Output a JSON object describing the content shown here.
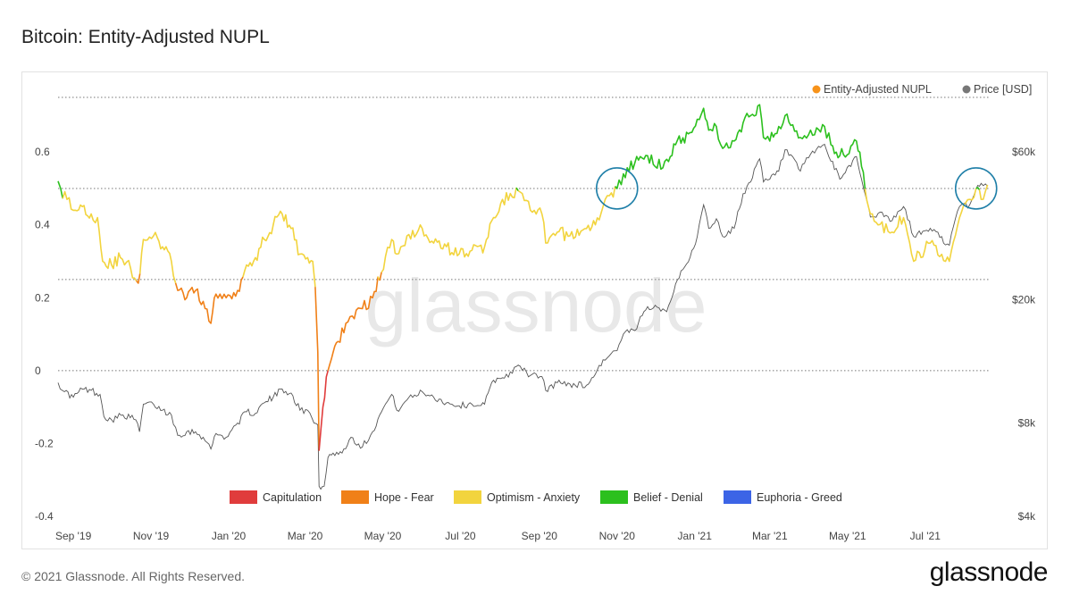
{
  "header": {
    "title": "Bitcoin: Entity-Adjusted NUPL"
  },
  "footer": {
    "copyright": "© 2021 Glassnode. All Rights Reserved.",
    "logo_text": "glassnode"
  },
  "watermark": "glassnode",
  "colors": {
    "capitulation": "#e03c3c",
    "hope_fear": "#f08018",
    "optimism_anxiety": "#f2d43e",
    "belief_denial": "#2cc01e",
    "euphoria_greed": "#3c64e6",
    "price": "#555555",
    "highlight_circle": "#1f7fa8",
    "nupl_legend_dot": "#f7931a",
    "price_legend_dot": "#777777"
  },
  "chart_data": {
    "type": "line",
    "title": "Bitcoin: Entity-Adjusted NUPL",
    "legend": {
      "placement": "top-right",
      "items": [
        "Entity-Adjusted NUPL",
        "Price [USD]"
      ]
    },
    "zone_legend": [
      {
        "label": "Capitulation",
        "color": "#e03c3c"
      },
      {
        "label": "Hope - Fear",
        "color": "#f08018"
      },
      {
        "label": "Optimism - Anxiety",
        "color": "#f2d43e"
      },
      {
        "label": "Belief - Denial",
        "color": "#2cc01e"
      },
      {
        "label": "Euphoria - Greed",
        "color": "#3c64e6"
      }
    ],
    "x_ticks": [
      "Sep '19",
      "Nov '19",
      "Jan '20",
      "Mar '20",
      "May '20",
      "Jul '20",
      "Sep '20",
      "Nov '20",
      "Jan '21",
      "Mar '21",
      "May '21",
      "Jul '21"
    ],
    "x_tick_dates": [
      "2019-09-01",
      "2019-11-01",
      "2020-01-01",
      "2020-03-01",
      "2020-05-01",
      "2020-07-01",
      "2020-09-01",
      "2020-11-01",
      "2021-01-01",
      "2021-03-01",
      "2021-05-01",
      "2021-07-01"
    ],
    "xlim": [
      "2019-08-20",
      "2021-08-20"
    ],
    "left_axis": {
      "label": "",
      "ylim": [
        -0.4,
        0.75
      ],
      "ticks": [
        "0.6",
        "0.4",
        "0.2",
        "0",
        "-0.2",
        "-0.4"
      ],
      "tick_values": [
        0.6,
        0.4,
        0.2,
        0,
        -0.2,
        -0.4
      ]
    },
    "right_axis": {
      "label": "",
      "scale": "log",
      "ylim": [
        4000,
        90000
      ],
      "ticks": [
        "$60k",
        "$20k",
        "$8k",
        "$4k"
      ],
      "tick_values": [
        60000,
        20000,
        8000,
        4000
      ]
    },
    "grid": "dotted reference lines at NUPL 0.75, 0.5, 0.25, 0",
    "zone_lines": [
      0.75,
      0.5,
      0.25,
      0
    ],
    "series": [
      {
        "name": "Entity-Adjusted NUPL",
        "axis": "left",
        "colored_by_zone": true,
        "points": [
          [
            "2019-08-20",
            0.52
          ],
          [
            "2019-08-22",
            0.5
          ],
          [
            "2019-08-27",
            0.47
          ],
          [
            "2019-09-01",
            0.44
          ],
          [
            "2019-09-08",
            0.45
          ],
          [
            "2019-09-15",
            0.43
          ],
          [
            "2019-09-20",
            0.42
          ],
          [
            "2019-09-24",
            0.3
          ],
          [
            "2019-10-01",
            0.29
          ],
          [
            "2019-10-08",
            0.31
          ],
          [
            "2019-10-16",
            0.28
          ],
          [
            "2019-10-22",
            0.24
          ],
          [
            "2019-10-26",
            0.36
          ],
          [
            "2019-11-03",
            0.37
          ],
          [
            "2019-11-10",
            0.34
          ],
          [
            "2019-11-17",
            0.3
          ],
          [
            "2019-11-22",
            0.22
          ],
          [
            "2019-11-29",
            0.2
          ],
          [
            "2019-12-06",
            0.22
          ],
          [
            "2019-12-12",
            0.19
          ],
          [
            "2019-12-18",
            0.13
          ],
          [
            "2019-12-22",
            0.21
          ],
          [
            "2019-12-30",
            0.2
          ],
          [
            "2020-01-08",
            0.22
          ],
          [
            "2020-01-15",
            0.29
          ],
          [
            "2020-01-22",
            0.31
          ],
          [
            "2020-01-29",
            0.36
          ],
          [
            "2020-02-05",
            0.4
          ],
          [
            "2020-02-12",
            0.43
          ],
          [
            "2020-02-19",
            0.39
          ],
          [
            "2020-02-26",
            0.32
          ],
          [
            "2020-03-03",
            0.31
          ],
          [
            "2020-03-07",
            0.3
          ],
          [
            "2020-03-09",
            0.23
          ],
          [
            "2020-03-11",
            0.05
          ],
          [
            "2020-03-12",
            -0.22
          ],
          [
            "2020-03-15",
            -0.1
          ],
          [
            "2020-03-19",
            0.0
          ],
          [
            "2020-03-23",
            0.05
          ],
          [
            "2020-03-27",
            0.08
          ],
          [
            "2020-04-02",
            0.13
          ],
          [
            "2020-04-07",
            0.15
          ],
          [
            "2020-04-15",
            0.17
          ],
          [
            "2020-04-23",
            0.2
          ],
          [
            "2020-04-30",
            0.27
          ],
          [
            "2020-05-08",
            0.36
          ],
          [
            "2020-05-12",
            0.32
          ],
          [
            "2020-05-20",
            0.37
          ],
          [
            "2020-06-01",
            0.39
          ],
          [
            "2020-06-10",
            0.35
          ],
          [
            "2020-06-20",
            0.34
          ],
          [
            "2020-06-30",
            0.32
          ],
          [
            "2020-07-10",
            0.33
          ],
          [
            "2020-07-20",
            0.34
          ],
          [
            "2020-07-27",
            0.42
          ],
          [
            "2020-08-03",
            0.47
          ],
          [
            "2020-08-17",
            0.49
          ],
          [
            "2020-08-25",
            0.44
          ],
          [
            "2020-09-03",
            0.43
          ],
          [
            "2020-09-06",
            0.35
          ],
          [
            "2020-09-15",
            0.38
          ],
          [
            "2020-09-25",
            0.37
          ],
          [
            "2020-10-08",
            0.39
          ],
          [
            "2020-10-15",
            0.4
          ],
          [
            "2020-10-21",
            0.45
          ],
          [
            "2020-10-26",
            0.48
          ],
          [
            "2020-11-01",
            0.5
          ],
          [
            "2020-11-06",
            0.54
          ],
          [
            "2020-11-15",
            0.57
          ],
          [
            "2020-11-25",
            0.59
          ],
          [
            "2020-12-01",
            0.56
          ],
          [
            "2020-12-10",
            0.58
          ],
          [
            "2020-12-17",
            0.62
          ],
          [
            "2020-12-27",
            0.65
          ],
          [
            "2021-01-03",
            0.69
          ],
          [
            "2021-01-08",
            0.72
          ],
          [
            "2021-01-12",
            0.66
          ],
          [
            "2021-01-18",
            0.67
          ],
          [
            "2021-01-23",
            0.61
          ],
          [
            "2021-02-01",
            0.63
          ],
          [
            "2021-02-08",
            0.68
          ],
          [
            "2021-02-14",
            0.7
          ],
          [
            "2021-02-21",
            0.73
          ],
          [
            "2021-02-24",
            0.64
          ],
          [
            "2021-03-01",
            0.63
          ],
          [
            "2021-03-08",
            0.67
          ],
          [
            "2021-03-13",
            0.7
          ],
          [
            "2021-03-25",
            0.64
          ],
          [
            "2021-04-02",
            0.66
          ],
          [
            "2021-04-13",
            0.67
          ],
          [
            "2021-04-18",
            0.62
          ],
          [
            "2021-04-25",
            0.59
          ],
          [
            "2021-05-08",
            0.63
          ],
          [
            "2021-05-12",
            0.56
          ],
          [
            "2021-05-19",
            0.43
          ],
          [
            "2021-05-25",
            0.4
          ],
          [
            "2021-06-05",
            0.38
          ],
          [
            "2021-06-14",
            0.42
          ],
          [
            "2021-06-22",
            0.3
          ],
          [
            "2021-07-05",
            0.35
          ],
          [
            "2021-07-20",
            0.3
          ],
          [
            "2021-07-28",
            0.42
          ],
          [
            "2021-08-05",
            0.47
          ],
          [
            "2021-08-10",
            0.5
          ],
          [
            "2021-08-14",
            0.47
          ],
          [
            "2021-08-19",
            0.51
          ]
        ]
      },
      {
        "name": "Price [USD]",
        "axis": "right",
        "points": [
          [
            "2019-08-20",
            10800
          ],
          [
            "2019-08-25",
            10100
          ],
          [
            "2019-09-01",
            9700
          ],
          [
            "2019-09-08",
            10300
          ],
          [
            "2019-09-15",
            10200
          ],
          [
            "2019-09-22",
            9900
          ],
          [
            "2019-09-25",
            8400
          ],
          [
            "2019-10-01",
            8200
          ],
          [
            "2019-10-10",
            8500
          ],
          [
            "2019-10-20",
            8200
          ],
          [
            "2019-10-23",
            7500
          ],
          [
            "2019-10-26",
            9200
          ],
          [
            "2019-11-03",
            9200
          ],
          [
            "2019-11-10",
            8800
          ],
          [
            "2019-11-17",
            8500
          ],
          [
            "2019-11-22",
            7300
          ],
          [
            "2019-11-29",
            7500
          ],
          [
            "2019-12-06",
            7500
          ],
          [
            "2019-12-12",
            7200
          ],
          [
            "2019-12-18",
            6600
          ],
          [
            "2019-12-22",
            7400
          ],
          [
            "2019-12-30",
            7200
          ],
          [
            "2020-01-08",
            8000
          ],
          [
            "2020-01-15",
            8700
          ],
          [
            "2020-01-22",
            8600
          ],
          [
            "2020-01-29",
            9300
          ],
          [
            "2020-02-05",
            9700
          ],
          [
            "2020-02-12",
            10300
          ],
          [
            "2020-02-19",
            10000
          ],
          [
            "2020-02-26",
            8800
          ],
          [
            "2020-03-03",
            8800
          ],
          [
            "2020-03-08",
            8000
          ],
          [
            "2020-03-11",
            7900
          ],
          [
            "2020-03-12",
            5000
          ],
          [
            "2020-03-16",
            5000
          ],
          [
            "2020-03-19",
            6200
          ],
          [
            "2020-03-23",
            6400
          ],
          [
            "2020-03-30",
            6400
          ],
          [
            "2020-04-06",
            7200
          ],
          [
            "2020-04-15",
            6700
          ],
          [
            "2020-04-23",
            7500
          ],
          [
            "2020-04-30",
            8700
          ],
          [
            "2020-05-08",
            9900
          ],
          [
            "2020-05-12",
            8800
          ],
          [
            "2020-05-20",
            9500
          ],
          [
            "2020-06-01",
            10100
          ],
          [
            "2020-06-10",
            9700
          ],
          [
            "2020-06-20",
            9300
          ],
          [
            "2020-06-30",
            9100
          ],
          [
            "2020-07-10",
            9200
          ],
          [
            "2020-07-20",
            9200
          ],
          [
            "2020-07-27",
            11000
          ],
          [
            "2020-08-03",
            11200
          ],
          [
            "2020-08-17",
            12200
          ],
          [
            "2020-08-25",
            11400
          ],
          [
            "2020-09-03",
            11300
          ],
          [
            "2020-09-06",
            10200
          ],
          [
            "2020-09-15",
            10800
          ],
          [
            "2020-09-25",
            10700
          ],
          [
            "2020-10-08",
            10600
          ],
          [
            "2020-10-15",
            11500
          ],
          [
            "2020-10-21",
            12800
          ],
          [
            "2020-10-26",
            13200
          ],
          [
            "2020-11-01",
            13700
          ],
          [
            "2020-11-06",
            15500
          ],
          [
            "2020-11-15",
            15900
          ],
          [
            "2020-11-25",
            19000
          ],
          [
            "2020-12-01",
            19200
          ],
          [
            "2020-12-10",
            18300
          ],
          [
            "2020-12-17",
            22500
          ],
          [
            "2020-12-27",
            26500
          ],
          [
            "2021-01-03",
            32000
          ],
          [
            "2021-01-08",
            40500
          ],
          [
            "2021-01-12",
            34000
          ],
          [
            "2021-01-18",
            36500
          ],
          [
            "2021-01-23",
            32000
          ],
          [
            "2021-02-01",
            34000
          ],
          [
            "2021-02-08",
            44000
          ],
          [
            "2021-02-14",
            48000
          ],
          [
            "2021-02-21",
            57000
          ],
          [
            "2021-02-24",
            48000
          ],
          [
            "2021-03-01",
            49000
          ],
          [
            "2021-03-08",
            52000
          ],
          [
            "2021-03-13",
            61000
          ],
          [
            "2021-03-25",
            52000
          ],
          [
            "2021-04-02",
            59000
          ],
          [
            "2021-04-13",
            63500
          ],
          [
            "2021-04-18",
            56000
          ],
          [
            "2021-04-25",
            49000
          ],
          [
            "2021-05-08",
            58000
          ],
          [
            "2021-05-12",
            49000
          ],
          [
            "2021-05-19",
            37000
          ],
          [
            "2021-05-25",
            38000
          ],
          [
            "2021-06-05",
            36000
          ],
          [
            "2021-06-14",
            40000
          ],
          [
            "2021-06-22",
            32000
          ],
          [
            "2021-07-05",
            34000
          ],
          [
            "2021-07-20",
            30000
          ],
          [
            "2021-07-28",
            40000
          ],
          [
            "2021-08-05",
            40500
          ],
          [
            "2021-08-10",
            45500
          ],
          [
            "2021-08-14",
            47500
          ],
          [
            "2021-08-19",
            46500
          ]
        ]
      }
    ],
    "annotations": [
      {
        "type": "circle",
        "note": "highlight",
        "x": "2020-11-01",
        "y": 0.5
      },
      {
        "type": "circle",
        "note": "highlight",
        "x": "2021-08-10",
        "y": 0.5
      }
    ]
  }
}
